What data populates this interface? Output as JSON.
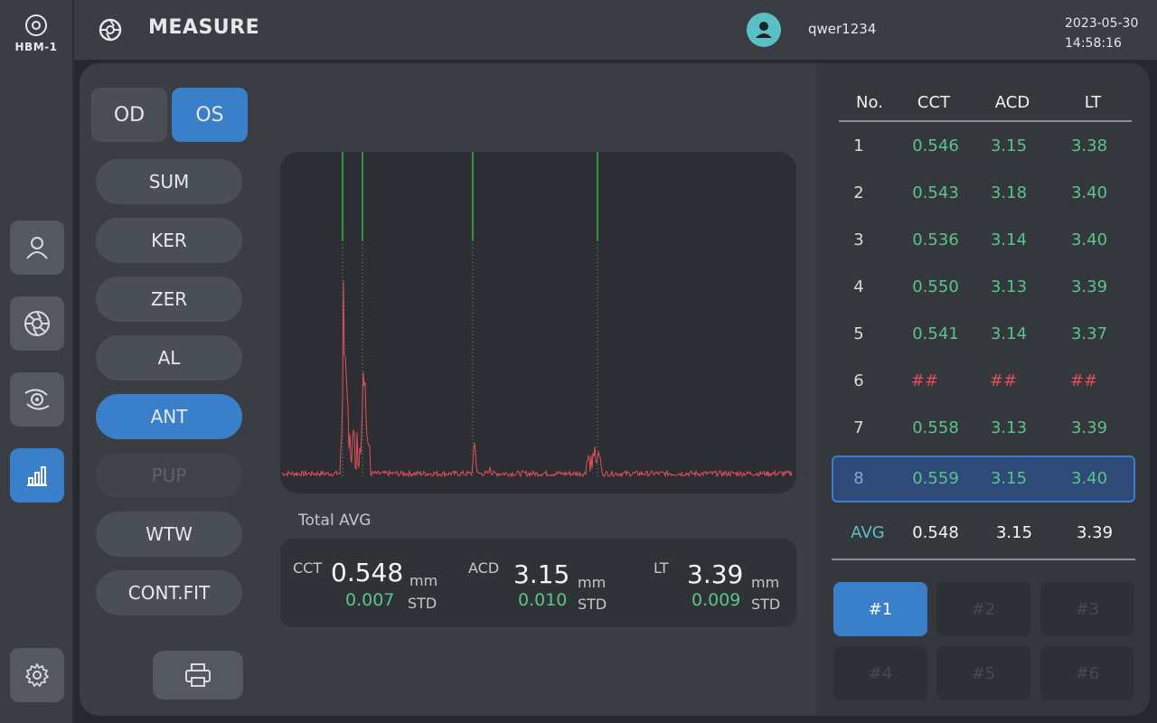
{
  "app": {
    "brand": "HBM-1",
    "title": "MEASURE",
    "username": "qwer1234",
    "date": "2023-05-30",
    "time": "14:58:16"
  },
  "nav": {
    "items": [
      {
        "icon": "user-icon",
        "active": false
      },
      {
        "icon": "aperture-icon",
        "active": false
      },
      {
        "icon": "eye-scan-icon",
        "active": false
      },
      {
        "icon": "bar-chart-icon",
        "active": true
      },
      {
        "icon": "gear-icon",
        "active": false
      }
    ]
  },
  "eye": {
    "od": "OD",
    "os": "OS",
    "selected": "OS"
  },
  "modes": [
    "SUM",
    "KER",
    "ZER",
    "AL",
    "ANT",
    "PUP",
    "WTW",
    "CONT.FIT"
  ],
  "active_mode": "ANT",
  "disabled_mode": "PUP",
  "total_avg": {
    "title": "Total AVG",
    "items": [
      {
        "label": "CCT",
        "value": "0.548",
        "std": "0.007",
        "unit": "mm",
        "std_label": "STD"
      },
      {
        "label": "ACD",
        "value": "3.15",
        "std": "0.010",
        "unit": "mm",
        "std_label": "STD"
      },
      {
        "label": "LT",
        "value": "3.39",
        "std": "0.009",
        "unit": "mm",
        "std_label": "STD"
      }
    ]
  },
  "table": {
    "headers": [
      "No.",
      "CCT",
      "ACD",
      "LT"
    ],
    "rows": [
      [
        "1",
        "0.546",
        "3.15",
        "3.38"
      ],
      [
        "2",
        "0.543",
        "3.18",
        "3.40"
      ],
      [
        "3",
        "0.536",
        "3.14",
        "3.40"
      ],
      [
        "4",
        "0.550",
        "3.13",
        "3.39"
      ],
      [
        "5",
        "0.541",
        "3.14",
        "3.37"
      ],
      [
        "6",
        "##",
        "##",
        "##"
      ],
      [
        "7",
        "0.558",
        "3.13",
        "3.39"
      ],
      [
        "8",
        "0.559",
        "3.15",
        "3.40"
      ]
    ],
    "selected_row": "8",
    "avg": [
      "AVG",
      "0.548",
      "3.15",
      "3.39"
    ]
  },
  "sets": [
    "#1",
    "#2",
    "#3",
    "#4",
    "#5",
    "#6"
  ],
  "active_set": "#1",
  "colors": {
    "accent": "#3a7fc9",
    "good": "#5cc48a",
    "error": "#e0505a",
    "signal": "#e0505a",
    "marker": "#3fae4a"
  }
}
